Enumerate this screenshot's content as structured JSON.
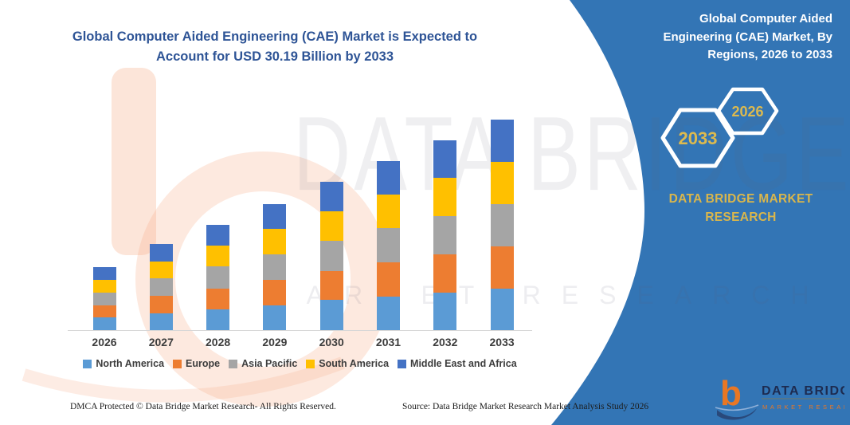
{
  "title": "Global Computer Aided Engineering (CAE) Market is Expected to Account for USD 30.19 Billion by 2033",
  "title_color": "#2E5496",
  "panel": {
    "background": "#3375B5",
    "heading": "Global Computer Aided Engineering (CAE) Market, By Regions, 2026 to 2033",
    "hexagons": [
      "2033",
      "2026"
    ],
    "brand": "DATA BRIDGE MARKET RESEARCH",
    "gold": "#D9B64C"
  },
  "logo": {
    "name": "DATA BRIDGE",
    "subtext": "MARKET RESEARCH",
    "orange": "#E87725",
    "navy": "#29497B"
  },
  "watermark": {
    "line1": "DATA BRIDGE",
    "line2": "MARKET RESEARCH"
  },
  "footer": {
    "left": "DMCA Protected © Data Bridge Market Research-  All Rights Reserved.",
    "source": "Source: Data Bridge Market Research  Market Analysis Study 2026"
  },
  "chart_data": {
    "type": "bar",
    "stacked": true,
    "unit": "USD Billion",
    "title": "Global Computer Aided Engineering (CAE) Market, By Regions, 2026 to 2033",
    "categories": [
      "2026",
      "2027",
      "2028",
      "2029",
      "2030",
      "2031",
      "2032",
      "2033"
    ],
    "series": [
      {
        "name": "North America",
        "color": "#5B9BD5",
        "values": [
          1.8,
          2.4,
          3.0,
          3.6,
          4.3,
          4.8,
          5.4,
          6.0
        ]
      },
      {
        "name": "Europe",
        "color": "#ED7D31",
        "values": [
          1.8,
          2.5,
          3.0,
          3.6,
          4.2,
          4.9,
          5.5,
          6.0
        ]
      },
      {
        "name": "Asia Pacific",
        "color": "#A5A5A5",
        "values": [
          1.8,
          2.5,
          3.1,
          3.7,
          4.3,
          4.9,
          5.5,
          6.1
        ]
      },
      {
        "name": "South America",
        "color": "#FFC000",
        "values": [
          1.8,
          2.4,
          3.0,
          3.6,
          4.2,
          4.8,
          5.4,
          6.0
        ]
      },
      {
        "name": "Middle East and Africa",
        "color": "#4472C4",
        "values": [
          1.8,
          2.5,
          3.0,
          3.6,
          4.3,
          4.8,
          5.4,
          6.09
        ]
      }
    ],
    "totals": [
      9.0,
      12.3,
      15.1,
      18.1,
      21.3,
      24.2,
      27.2,
      30.19
    ],
    "ylim": [
      0,
      32
    ],
    "y_axis_labels_visible": false,
    "gridlines": false,
    "legend_position": "bottom"
  }
}
